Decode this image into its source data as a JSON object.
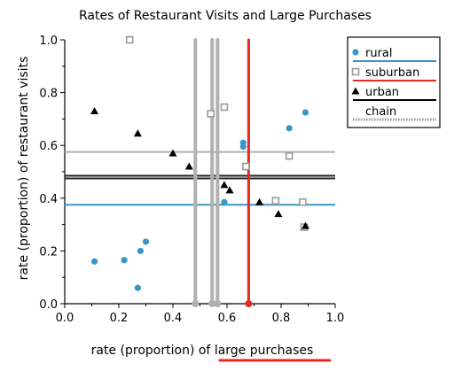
{
  "chart_data": {
    "type": "scatter",
    "title": "Rates of Restaurant Visits and Large Purchases",
    "xlabel_prefix": "rate (proportion) of ",
    "xlabel_highlight": "large purchases",
    "ylabel": "rate (proportion) of restaurant visits",
    "xlim": [
      0.0,
      1.0
    ],
    "ylim": [
      0.0,
      1.0
    ],
    "x_ticks": [
      "0.0",
      "0.2",
      "0.4",
      "0.6",
      "0.8",
      "1.0"
    ],
    "y_ticks": [
      "0.0",
      "0.2",
      "0.4",
      "0.6",
      "0.8",
      "1.0"
    ],
    "grid": false,
    "legend_position": "top-right",
    "series": [
      {
        "name": "rural",
        "marker": "circle",
        "color": "#3a96c8",
        "points": [
          {
            "x": 0.11,
            "y": 0.16
          },
          {
            "x": 0.22,
            "y": 0.165
          },
          {
            "x": 0.28,
            "y": 0.2
          },
          {
            "x": 0.3,
            "y": 0.235
          },
          {
            "x": 0.27,
            "y": 0.06
          },
          {
            "x": 0.66,
            "y": 0.61
          },
          {
            "x": 0.66,
            "y": 0.595
          },
          {
            "x": 0.59,
            "y": 0.385
          },
          {
            "x": 0.83,
            "y": 0.665
          },
          {
            "x": 0.89,
            "y": 0.725
          }
        ]
      },
      {
        "name": "suburban",
        "marker": "square",
        "color": "#9a9a9a",
        "points": [
          {
            "x": 0.24,
            "y": 1.0
          },
          {
            "x": 0.54,
            "y": 0.72
          },
          {
            "x": 0.59,
            "y": 0.745
          },
          {
            "x": 0.67,
            "y": 0.52
          },
          {
            "x": 0.78,
            "y": 0.39
          },
          {
            "x": 0.83,
            "y": 0.56
          },
          {
            "x": 0.88,
            "y": 0.385
          },
          {
            "x": 0.885,
            "y": 0.29
          }
        ]
      },
      {
        "name": "urban",
        "marker": "triangle",
        "color": "#000000",
        "points": [
          {
            "x": 0.11,
            "y": 0.73
          },
          {
            "x": 0.27,
            "y": 0.645
          },
          {
            "x": 0.4,
            "y": 0.57
          },
          {
            "x": 0.46,
            "y": 0.52
          },
          {
            "x": 0.59,
            "y": 0.45
          },
          {
            "x": 0.61,
            "y": 0.43
          },
          {
            "x": 0.72,
            "y": 0.385
          },
          {
            "x": 0.79,
            "y": 0.34
          },
          {
            "x": 0.89,
            "y": 0.295
          }
        ]
      }
    ],
    "horizontal_lines": [
      {
        "y": 0.575,
        "color": "#b0b0b0"
      },
      {
        "y": 0.485,
        "color": "#222222"
      },
      {
        "y": 0.475,
        "color": "#222222"
      },
      {
        "y": 0.375,
        "color": "#3a96c8"
      }
    ],
    "vertical_lines": [
      {
        "x": 0.483,
        "color": "#b0b0b0"
      },
      {
        "x": 0.545,
        "color": "#b0b0b0"
      },
      {
        "x": 0.565,
        "color": "#b0b0b0"
      },
      {
        "x": 0.68,
        "color": "#e8281e"
      }
    ],
    "legend": [
      {
        "label": "rural",
        "marker": "circle",
        "marker_color": "#3a96c8",
        "line_color": "#3a96c8",
        "line_style": "solid"
      },
      {
        "label": "suburban",
        "marker": "square",
        "marker_color": "#9a9a9a",
        "line_color": "#e8281e",
        "line_style": "solid"
      },
      {
        "label": "urban",
        "marker": "triangle",
        "marker_color": "#000000",
        "line_color": "#000000",
        "line_style": "solid"
      },
      {
        "label": "chain",
        "marker": "none",
        "marker_color": "",
        "line_color": "#999999",
        "line_style": "dotted"
      }
    ],
    "annotation_color": "#e8281e"
  }
}
